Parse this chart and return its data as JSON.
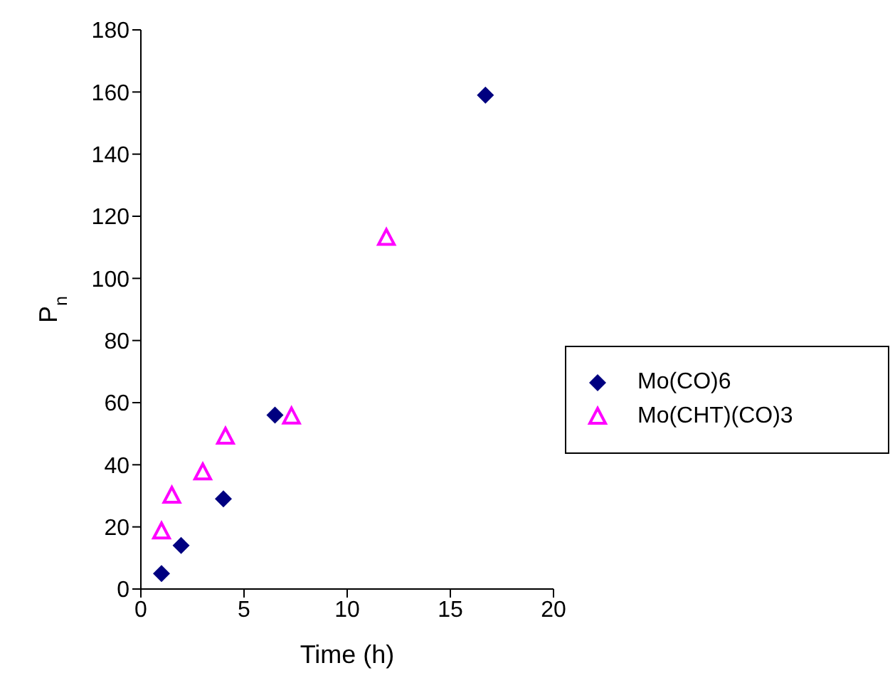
{
  "chart_data": {
    "type": "scatter",
    "xlabel": "Time (h)",
    "ylabel": "P$_{n}$",
    "xlim": [
      0,
      20
    ],
    "xticks": [
      0,
      5,
      10,
      15,
      20
    ],
    "ylim": [
      0,
      180
    ],
    "yticks": [
      0,
      20,
      40,
      60,
      80,
      100,
      120,
      140,
      160,
      180
    ],
    "grid": false,
    "legend": "right",
    "series": [
      {
        "name": "Mo(CO)6",
        "color": "#000080",
        "marker": "diamond",
        "x": [
          1,
          1.95,
          4,
          6.5,
          16.7
        ],
        "values": [
          5,
          14,
          29,
          56,
          159
        ]
      },
      {
        "name": "Mo(CHT)(CO)3",
        "color": "#ff00ff",
        "marker": "triangle",
        "x": [
          1,
          1.5,
          3,
          4.1,
          7.3,
          11.9
        ],
        "values": [
          18.5,
          30,
          37.5,
          49,
          55.5,
          113
        ]
      }
    ]
  }
}
